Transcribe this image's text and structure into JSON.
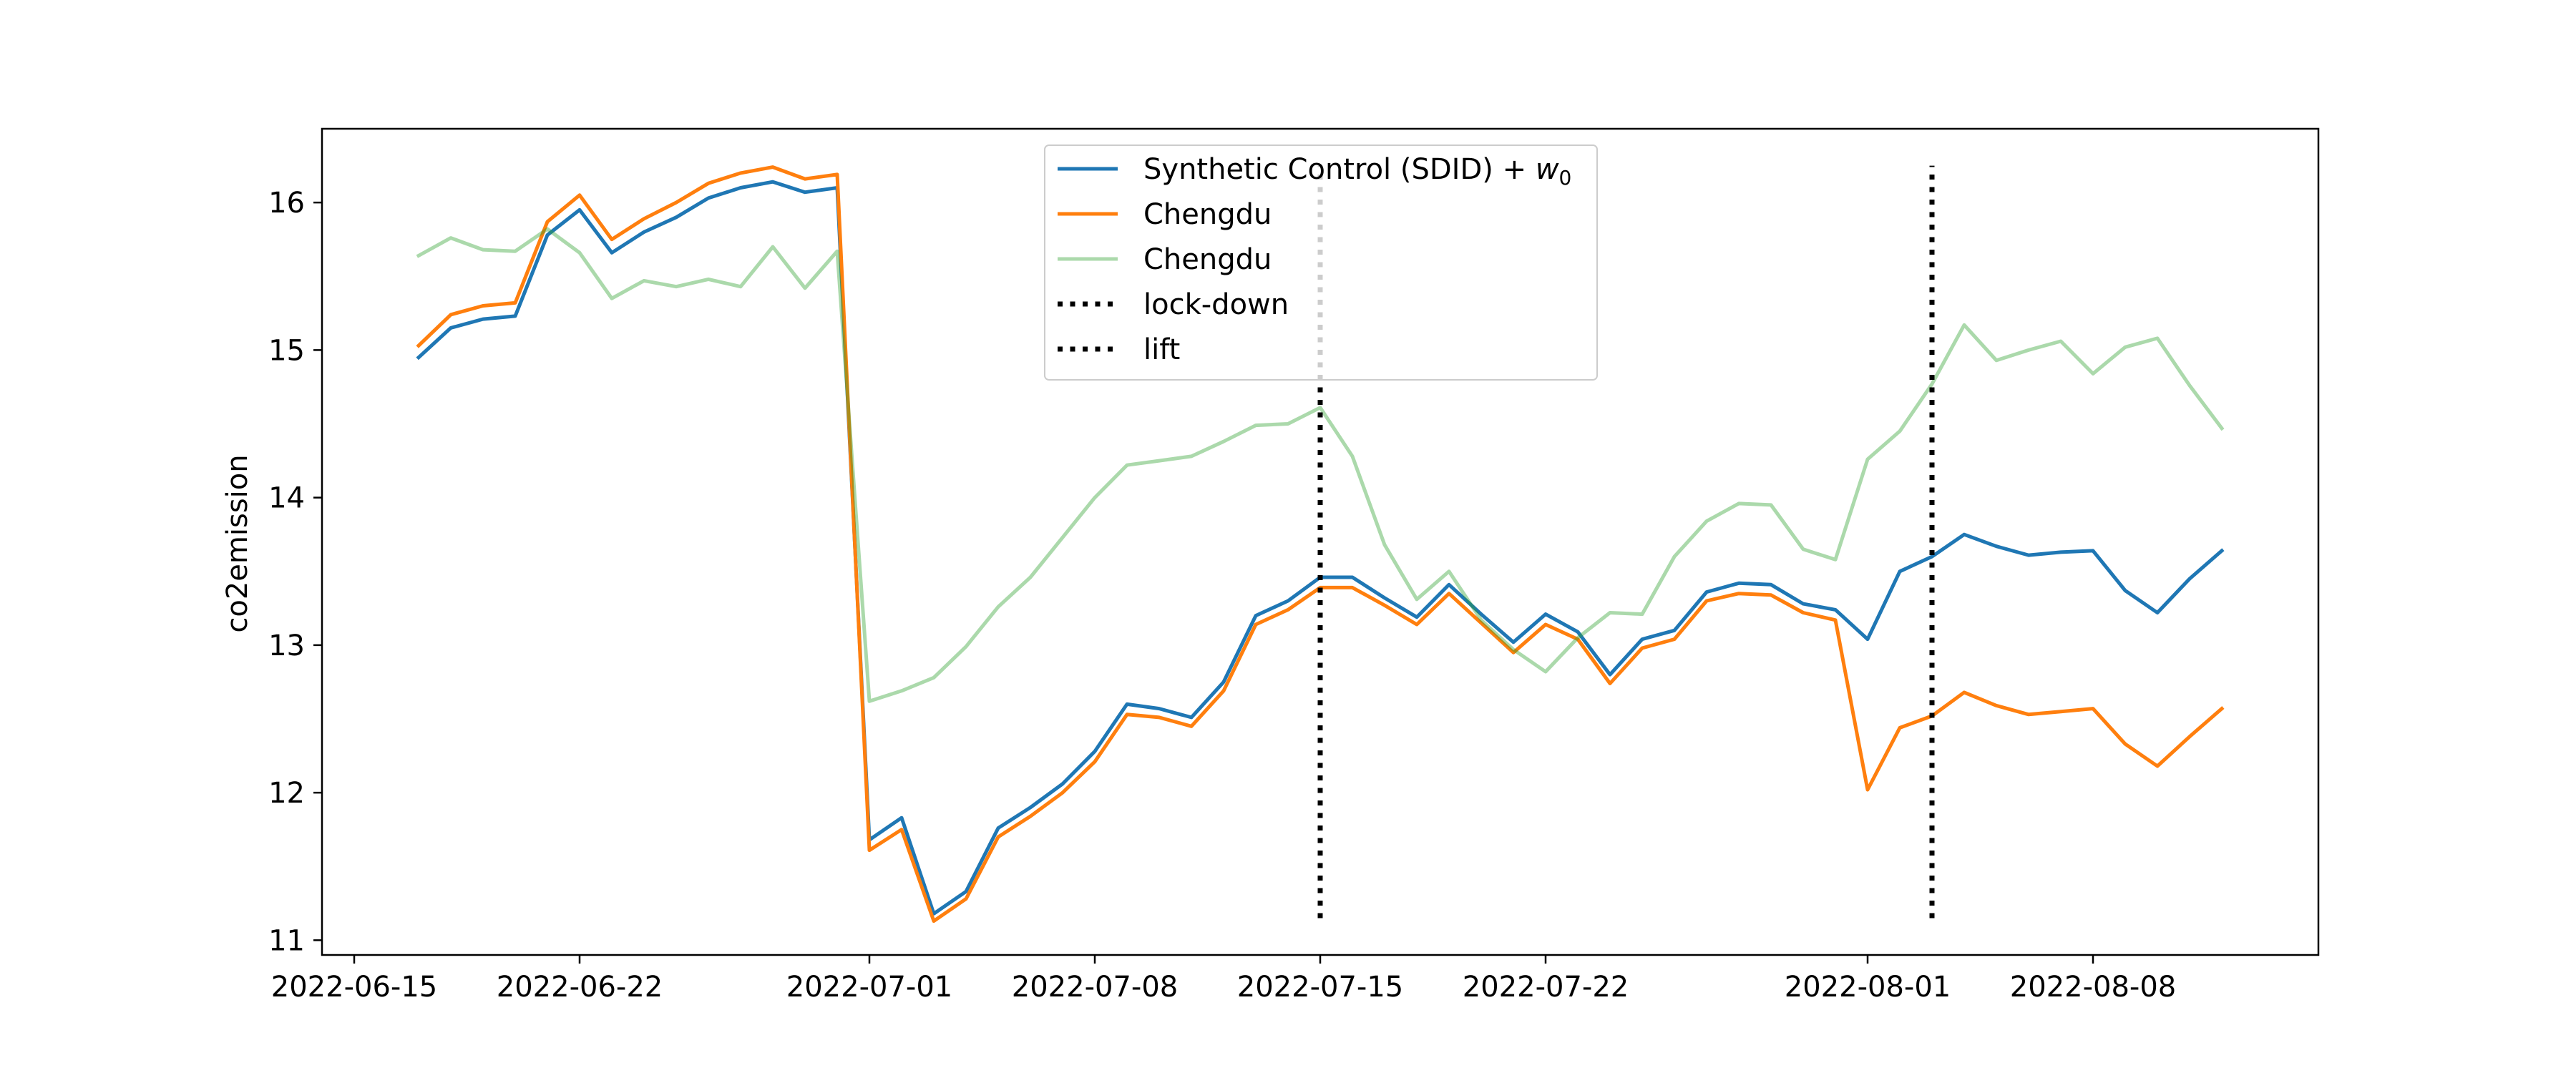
{
  "chart_data": {
    "type": "line",
    "title": "",
    "xlabel": "",
    "ylabel": "co2emission",
    "x_ticks": [
      "2022-06-15",
      "2022-06-22",
      "2022-07-01",
      "2022-07-08",
      "2022-07-15",
      "2022-07-22",
      "2022-08-01",
      "2022-08-08"
    ],
    "y_ticks": [
      "11",
      "12",
      "13",
      "14",
      "15",
      "16"
    ],
    "xlim": [
      "2022-06-14",
      "2022-08-15"
    ],
    "ylim": [
      10.9,
      16.5
    ],
    "grid": false,
    "legend_position": "top-center",
    "x": [
      "2022-06-17",
      "2022-06-18",
      "2022-06-19",
      "2022-06-20",
      "2022-06-21",
      "2022-06-22",
      "2022-06-23",
      "2022-06-24",
      "2022-06-25",
      "2022-06-26",
      "2022-06-27",
      "2022-06-28",
      "2022-06-29",
      "2022-06-30",
      "2022-07-01",
      "2022-07-02",
      "2022-07-03",
      "2022-07-04",
      "2022-07-05",
      "2022-07-06",
      "2022-07-07",
      "2022-07-08",
      "2022-07-09",
      "2022-07-10",
      "2022-07-11",
      "2022-07-12",
      "2022-07-13",
      "2022-07-14",
      "2022-07-15",
      "2022-07-16",
      "2022-07-17",
      "2022-07-18",
      "2022-07-19",
      "2022-07-20",
      "2022-07-21",
      "2022-07-22",
      "2022-07-23",
      "2022-07-24",
      "2022-07-25",
      "2022-07-26",
      "2022-07-27",
      "2022-07-28",
      "2022-07-29",
      "2022-07-30",
      "2022-07-31",
      "2022-08-01",
      "2022-08-02",
      "2022-08-03",
      "2022-08-04",
      "2022-08-05",
      "2022-08-06",
      "2022-08-07",
      "2022-08-08",
      "2022-08-09",
      "2022-08-10",
      "2022-08-11",
      "2022-08-12"
    ],
    "series": [
      {
        "name": "Synthetic Control (SDID) + w0",
        "legend_prefix": "Synthetic Control (SDID) + ",
        "legend_math": "w",
        "legend_sub": "0",
        "color": "#1f77b4",
        "alpha": 1,
        "values": [
          14.95,
          15.15,
          15.21,
          15.23,
          15.78,
          15.95,
          15.66,
          15.8,
          15.9,
          16.03,
          16.1,
          16.14,
          16.07,
          16.1,
          11.68,
          11.83,
          11.18,
          11.33,
          11.76,
          11.9,
          12.06,
          12.28,
          12.6,
          12.57,
          12.51,
          12.75,
          13.2,
          13.3,
          13.46,
          13.46,
          13.32,
          13.19,
          13.41,
          13.21,
          13.02,
          13.21,
          13.09,
          12.8,
          13.04,
          13.1,
          13.36,
          13.42,
          13.41,
          13.28,
          13.24,
          13.04,
          13.5,
          13.6,
          13.75,
          13.67,
          13.61,
          13.63,
          13.64,
          13.37,
          13.22,
          13.45,
          13.64
        ]
      },
      {
        "name": "Chengdu",
        "color": "#ff7f0e",
        "alpha": 1,
        "values": [
          15.03,
          15.24,
          15.3,
          15.32,
          15.87,
          16.05,
          15.75,
          15.89,
          16.0,
          16.13,
          16.2,
          16.24,
          16.16,
          16.19,
          11.61,
          11.75,
          11.13,
          11.28,
          11.7,
          11.84,
          12.0,
          12.21,
          12.53,
          12.51,
          12.45,
          12.69,
          13.14,
          13.24,
          13.39,
          13.39,
          13.27,
          13.14,
          13.35,
          13.15,
          12.95,
          13.14,
          13.04,
          12.74,
          12.98,
          13.04,
          13.3,
          13.35,
          13.34,
          13.22,
          13.17,
          12.02,
          12.44,
          12.52,
          12.68,
          12.59,
          12.53,
          12.55,
          12.57,
          12.33,
          12.18,
          12.38,
          12.57
        ]
      },
      {
        "name": "Chengdu",
        "color": "#2ca02c",
        "alpha": 0.4,
        "values": [
          15.64,
          15.76,
          15.68,
          15.67,
          15.82,
          15.66,
          15.35,
          15.47,
          15.43,
          15.48,
          15.43,
          15.7,
          15.42,
          15.67,
          12.62,
          12.69,
          12.78,
          12.99,
          13.26,
          13.46,
          13.73,
          14.0,
          14.22,
          14.25,
          14.28,
          14.38,
          14.49,
          14.5,
          14.61,
          14.28,
          13.68,
          13.31,
          13.5,
          13.17,
          12.97,
          12.82,
          13.05,
          13.22,
          13.21,
          13.6,
          13.84,
          13.96,
          13.95,
          13.65,
          13.58,
          14.26,
          14.45,
          14.77,
          15.17,
          14.93,
          15.0,
          15.06,
          14.84,
          15.02,
          15.08,
          14.76,
          14.47
        ]
      }
    ],
    "vlines": [
      {
        "name": "lock-down",
        "x": "2022-07-15",
        "ymin": 11.15,
        "ymax": 16.25,
        "color": "#000000"
      },
      {
        "name": "lift",
        "x": "2022-08-03",
        "ymin": 11.15,
        "ymax": 16.25,
        "color": "#000000"
      }
    ]
  }
}
